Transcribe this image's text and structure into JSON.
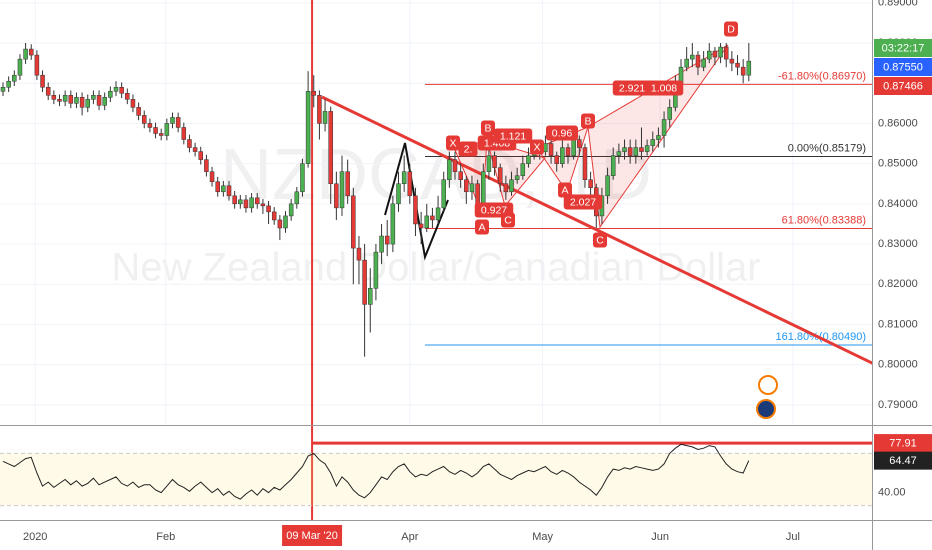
{
  "chart_data": {
    "type": "candlestick",
    "watermark": "NZDCAD, 1D",
    "subtitle": "New Zealand Dollar/Canadian Dollar",
    "up_color": "#4caf50",
    "down_color": "#e53935",
    "xlim": [
      -0.53,
      153.8
    ],
    "xticks": [
      {
        "value": 5.7,
        "label": "2020"
      },
      {
        "value": 28.8,
        "label": "Feb"
      },
      {
        "value": 72,
        "label": "Apr"
      },
      {
        "value": 95.5,
        "label": "May"
      },
      {
        "value": 116.3,
        "label": "Jun"
      },
      {
        "value": 139.8,
        "label": "Jul"
      }
    ],
    "crosshair": {
      "value": 54.7,
      "label": "09 Mar '20"
    },
    "ylim": [
      0.785,
      0.8907
    ],
    "yticks": [
      {
        "value": 0.89,
        "label": "0.89000"
      },
      {
        "value": 0.88,
        "label": "0.88000"
      },
      {
        "value": 0.87,
        "label": "0.87000"
      },
      {
        "value": 0.86,
        "label": "0.86000"
      },
      {
        "value": 0.85,
        "label": "0.85000"
      },
      {
        "value": 0.84,
        "label": "0.84000"
      },
      {
        "value": 0.83,
        "label": "0.83000"
      },
      {
        "value": 0.82,
        "label": "0.82000"
      },
      {
        "value": 0.81,
        "label": "0.81000"
      },
      {
        "value": 0.8,
        "label": "0.80000"
      },
      {
        "value": 0.79,
        "label": "0.79000"
      }
    ],
    "open": [
      0.868,
      0.869,
      0.8705,
      0.872,
      0.876,
      0.8785,
      0.877,
      0.872,
      0.869,
      0.867,
      0.866,
      0.8655,
      0.867,
      0.865,
      0.8665,
      0.864,
      0.866,
      0.867,
      0.8645,
      0.8665,
      0.868,
      0.869,
      0.8675,
      0.866,
      0.864,
      0.862,
      0.86,
      0.859,
      0.8575,
      0.857,
      0.86,
      0.8615,
      0.859,
      0.856,
      0.854,
      0.853,
      0.851,
      0.848,
      0.8455,
      0.843,
      0.8445,
      0.842,
      0.84,
      0.841,
      0.839,
      0.8415,
      0.84,
      0.8395,
      0.838,
      0.836,
      0.834,
      0.837,
      0.84,
      0.843,
      0.85,
      0.868,
      0.867,
      0.86,
      0.863,
      0.845,
      0.839,
      0.848,
      0.842,
      0.829,
      0.826,
      0.815,
      0.819,
      0.828,
      0.832,
      0.83,
      0.84,
      0.845,
      0.848,
      0.842,
      0.835,
      0.834,
      0.837,
      0.836,
      0.839,
      0.846,
      0.851,
      0.848,
      0.846,
      0.843,
      0.845,
      0.84,
      0.848,
      0.852,
      0.849,
      0.845,
      0.843,
      0.846,
      0.847,
      0.85,
      0.852,
      0.854,
      0.853,
      0.855,
      0.852,
      0.85,
      0.854,
      0.852,
      0.856,
      0.854,
      0.846,
      0.844,
      0.837,
      0.842,
      0.847,
      0.852,
      0.853,
      0.854,
      0.852,
      0.854,
      0.853,
      0.8545,
      0.856,
      0.857,
      0.861,
      0.864,
      0.87,
      0.874,
      0.876,
      0.877,
      0.874,
      0.876,
      0.878,
      0.8765,
      0.879,
      0.876,
      0.875,
      0.874,
      0.872
    ],
    "high": [
      0.8702,
      0.8717,
      0.8732,
      0.8772,
      0.88,
      0.8797,
      0.8782,
      0.8732,
      0.8702,
      0.8682,
      0.8672,
      0.8682,
      0.8682,
      0.8677,
      0.8677,
      0.8672,
      0.8682,
      0.8682,
      0.8677,
      0.8692,
      0.8705,
      0.8702,
      0.8687,
      0.8672,
      0.8652,
      0.8632,
      0.8612,
      0.8602,
      0.8587,
      0.8612,
      0.8627,
      0.8627,
      0.8602,
      0.8572,
      0.8552,
      0.8542,
      0.8522,
      0.8492,
      0.8467,
      0.8457,
      0.8457,
      0.8432,
      0.8422,
      0.8422,
      0.8427,
      0.8427,
      0.8412,
      0.8407,
      0.8392,
      0.8372,
      0.8382,
      0.8412,
      0.8442,
      0.8512,
      0.873,
      0.872,
      0.8682,
      0.866,
      0.8642,
      0.848,
      0.852,
      0.851,
      0.844,
      0.832,
      0.83,
      0.824,
      0.83,
      0.835,
      0.836,
      0.842,
      0.848,
      0.852,
      0.85,
      0.844,
      0.838,
      0.84,
      0.839,
      0.842,
      0.848,
      0.853,
      0.853,
      0.85,
      0.847,
      0.847,
      0.846,
      0.85,
      0.854,
      0.853,
      0.85,
      0.847,
      0.848,
      0.849,
      0.852,
      0.854,
      0.856,
      0.856,
      0.857,
      0.856,
      0.853,
      0.856,
      0.855,
      0.858,
      0.857,
      0.855,
      0.848,
      0.845,
      0.844,
      0.849,
      0.854,
      0.855,
      0.856,
      0.856,
      0.856,
      0.859,
      0.856,
      0.858,
      0.859,
      0.863,
      0.866,
      0.872,
      0.876,
      0.879,
      0.88,
      0.878,
      0.878,
      0.88,
      0.879,
      0.88,
      0.88,
      0.878,
      0.877,
      0.876,
      0.88
    ],
    "low": [
      0.8668,
      0.8678,
      0.8693,
      0.8708,
      0.8748,
      0.8758,
      0.8708,
      0.8678,
      0.8658,
      0.8648,
      0.8643,
      0.8643,
      0.8638,
      0.8638,
      0.862,
      0.8628,
      0.8648,
      0.8633,
      0.8633,
      0.8653,
      0.8668,
      0.8663,
      0.8648,
      0.8628,
      0.8608,
      0.8588,
      0.8578,
      0.8563,
      0.8558,
      0.8558,
      0.8588,
      0.8578,
      0.8548,
      0.8528,
      0.8518,
      0.8498,
      0.8468,
      0.8443,
      0.8418,
      0.8418,
      0.8408,
      0.8388,
      0.8388,
      0.8378,
      0.8378,
      0.8388,
      0.8375,
      0.835,
      0.8348,
      0.831,
      0.8328,
      0.8358,
      0.8388,
      0.8418,
      0.849,
      0.864,
      0.856,
      0.858,
      0.84,
      0.836,
      0.837,
      0.84,
      0.82,
      0.82,
      0.802,
      0.808,
      0.816,
      0.825,
      0.827,
      0.828,
      0.838,
      0.843,
      0.84,
      0.832,
      0.83,
      0.833,
      0.834,
      0.835,
      0.838,
      0.844,
      0.846,
      0.844,
      0.84,
      0.841,
      0.838,
      0.839,
      0.846,
      0.847,
      0.843,
      0.841,
      0.842,
      0.845,
      0.846,
      0.849,
      0.851,
      0.851,
      0.852,
      0.85,
      0.848,
      0.849,
      0.85,
      0.851,
      0.852,
      0.844,
      0.842,
      0.834,
      0.835,
      0.84,
      0.846,
      0.85,
      0.851,
      0.85,
      0.85,
      0.851,
      0.852,
      0.853,
      0.854,
      0.854,
      0.859,
      0.863,
      0.869,
      0.873,
      0.874,
      0.872,
      0.873,
      0.875,
      0.8745,
      0.875,
      0.874,
      0.873,
      0.872,
      0.87,
      0.8705
    ],
    "close": [
      0.869,
      0.8705,
      0.872,
      0.876,
      0.8785,
      0.877,
      0.872,
      0.869,
      0.867,
      0.866,
      0.8655,
      0.867,
      0.865,
      0.8665,
      0.864,
      0.866,
      0.867,
      0.8645,
      0.8665,
      0.868,
      0.869,
      0.8675,
      0.866,
      0.864,
      0.862,
      0.86,
      0.859,
      0.8575,
      0.857,
      0.86,
      0.8615,
      0.859,
      0.856,
      0.854,
      0.853,
      0.851,
      0.848,
      0.8455,
      0.843,
      0.8445,
      0.842,
      0.84,
      0.841,
      0.839,
      0.8415,
      0.84,
      0.8395,
      0.838,
      0.836,
      0.834,
      0.837,
      0.84,
      0.843,
      0.85,
      0.868,
      0.867,
      0.86,
      0.863,
      0.845,
      0.839,
      0.848,
      0.842,
      0.829,
      0.826,
      0.815,
      0.819,
      0.828,
      0.832,
      0.83,
      0.84,
      0.845,
      0.848,
      0.842,
      0.835,
      0.834,
      0.837,
      0.836,
      0.839,
      0.846,
      0.851,
      0.848,
      0.846,
      0.843,
      0.845,
      0.84,
      0.848,
      0.852,
      0.849,
      0.845,
      0.843,
      0.846,
      0.847,
      0.85,
      0.852,
      0.854,
      0.853,
      0.855,
      0.852,
      0.85,
      0.854,
      0.852,
      0.856,
      0.854,
      0.846,
      0.844,
      0.837,
      0.842,
      0.847,
      0.852,
      0.853,
      0.854,
      0.852,
      0.854,
      0.853,
      0.8545,
      0.856,
      0.857,
      0.861,
      0.864,
      0.87,
      0.874,
      0.876,
      0.877,
      0.874,
      0.876,
      0.878,
      0.8765,
      0.879,
      0.876,
      0.875,
      0.874,
      0.872,
      0.8755
    ],
    "fib_levels": [
      {
        "value": 0.8697,
        "label": "-61.80%(0.86970)",
        "color": "#e53935"
      },
      {
        "value": 0.85179,
        "label": "0.00%(0.85179)",
        "color": "#333333"
      },
      {
        "value": 0.83388,
        "label": "61.80%(0.83388)",
        "color": "#e53935"
      },
      {
        "value": 0.8049,
        "label": "161.80%(0.80490)",
        "color": "#2196f3"
      }
    ],
    "price_labels": [
      {
        "value": 0.8755,
        "label": "0.87550",
        "color": "#2962ff"
      },
      {
        "value": 0.87466,
        "label": "0.87466",
        "color": "#e53935"
      }
    ],
    "countdown": "03:22:17",
    "pattern_labels": [
      "X",
      "2.",
      "B",
      "1.408",
      "1.121",
      "A",
      "0.927",
      "C",
      "X",
      "0.96",
      "B",
      "A",
      "2.027",
      "C",
      "1.008",
      "2.921",
      "D"
    ],
    "rsi": {
      "ylim": [
        19,
        91
      ],
      "yticks": [
        {
          "value": 40,
          "label": "40.00"
        }
      ],
      "band": [
        30,
        70
      ],
      "level": 77.91,
      "values": [
        64,
        62,
        60,
        63,
        66,
        67,
        55,
        45,
        48,
        44,
        47,
        50,
        46,
        49,
        45,
        47,
        51,
        46,
        48,
        50,
        52,
        47,
        45,
        48,
        44,
        46,
        46,
        42,
        40,
        45,
        50,
        46,
        44,
        41,
        45,
        48,
        44,
        40,
        43,
        38,
        41,
        37,
        35,
        39,
        42,
        38,
        43,
        40,
        44,
        42,
        46,
        50,
        55,
        60,
        68,
        70,
        65,
        62,
        55,
        45,
        52,
        48,
        42,
        38,
        36,
        40,
        46,
        52,
        50,
        56,
        60,
        62,
        56,
        52,
        54,
        53,
        56,
        58,
        60,
        56,
        54,
        57,
        55,
        52,
        55,
        60,
        62,
        58,
        54,
        52,
        50,
        53,
        55,
        57,
        56,
        58,
        60,
        56,
        54,
        57,
        55,
        52,
        48,
        45,
        42,
        38,
        44,
        52,
        58,
        57,
        59,
        58,
        60,
        59,
        58,
        57,
        58,
        62,
        70,
        74,
        77,
        76,
        75,
        73,
        74,
        76,
        75,
        68,
        62,
        58,
        56,
        55,
        64.47
      ]
    }
  }
}
